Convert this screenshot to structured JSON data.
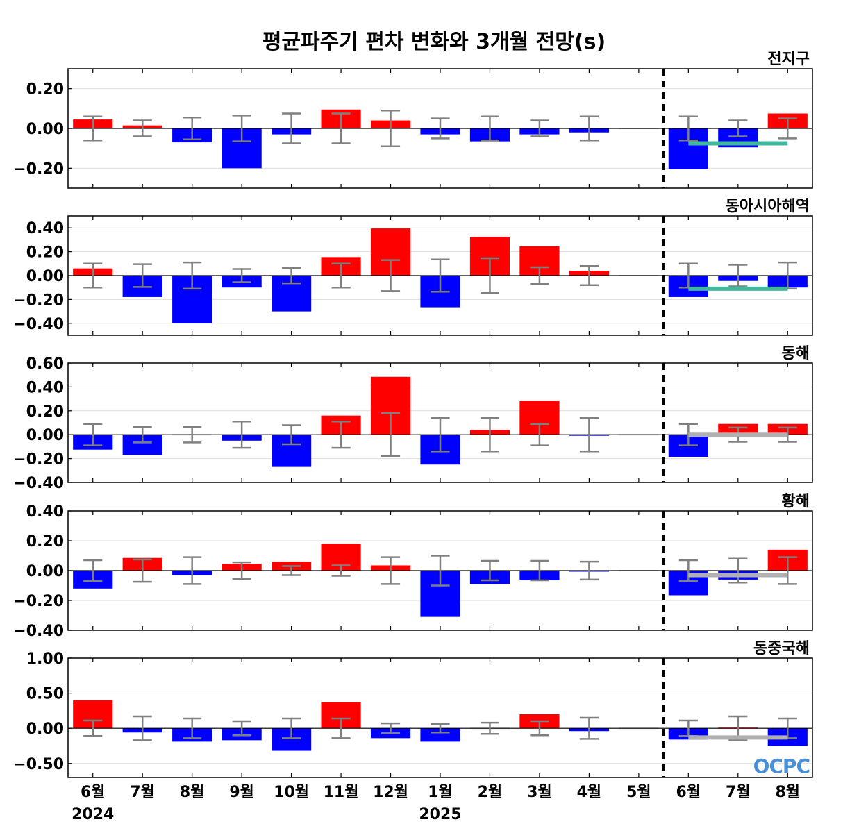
{
  "title": "평균파주기 편차 변화와 3개월 전망(s)",
  "logo_text": "OCPC",
  "colors": {
    "positive": "#ff0000",
    "negative": "#0000ff",
    "error_bar": "#808080",
    "forecast_teal": "#40b89c",
    "forecast_gray": "#b0b0b0",
    "grid": "#dddddd",
    "divider": "#000000"
  },
  "chart_data": {
    "type": "bar",
    "categories": [
      "6월",
      "7월",
      "8월",
      "9월",
      "10월",
      "11월",
      "12월",
      "1월",
      "2월",
      "3월",
      "4월",
      "5월",
      "6월",
      "7월",
      "8월"
    ],
    "year_labels": [
      {
        "label": "2024",
        "at_category": 0
      },
      {
        "label": "2025",
        "at_category": 7
      }
    ],
    "forecast_divider_between": [
      11,
      12
    ],
    "panels": [
      {
        "name": "전지구",
        "ylim": [
          -0.3,
          0.3
        ],
        "yticks": [
          0.2,
          0.0,
          -0.2
        ],
        "ytick_labels": [
          "0.20",
          "0.00",
          "−0.20"
        ],
        "values": [
          0.045,
          0.015,
          -0.07,
          -0.2,
          -0.03,
          0.095,
          0.04,
          -0.03,
          -0.065,
          -0.03,
          -0.02,
          0.0,
          -0.205,
          -0.095,
          0.075
        ],
        "error_bars": [
          0.06,
          0.04,
          0.055,
          0.065,
          0.075,
          0.075,
          0.09,
          0.05,
          0.06,
          0.04,
          0.06,
          null,
          0.06,
          0.04,
          0.05
        ],
        "forecast_line": {
          "value": -0.075,
          "from": 12,
          "to": 14,
          "color": "teal"
        }
      },
      {
        "name": "동아시아해역",
        "ylim": [
          -0.5,
          0.5
        ],
        "yticks": [
          0.4,
          0.2,
          0.0,
          -0.2,
          -0.4
        ],
        "ytick_labels": [
          "0.40",
          "0.20",
          "0.00",
          "−0.20",
          "−0.40"
        ],
        "values": [
          0.06,
          -0.18,
          -0.4,
          -0.1,
          -0.3,
          0.155,
          0.395,
          -0.265,
          0.325,
          0.245,
          0.04,
          0.0,
          -0.18,
          -0.045,
          -0.1
        ],
        "error_bars": [
          0.1,
          0.095,
          0.11,
          0.055,
          0.065,
          0.1,
          0.13,
          0.135,
          0.145,
          0.07,
          0.08,
          null,
          0.1,
          0.09,
          0.11
        ],
        "forecast_line": {
          "value": -0.11,
          "from": 12,
          "to": 14,
          "color": "teal"
        }
      },
      {
        "name": "동해",
        "ylim": [
          -0.4,
          0.6
        ],
        "yticks": [
          0.6,
          0.4,
          0.2,
          0.0,
          -0.2,
          -0.4
        ],
        "ytick_labels": [
          "0.60",
          "0.40",
          "0.20",
          "0.00",
          "−0.20",
          "−0.40"
        ],
        "values": [
          -0.125,
          -0.17,
          0.0,
          -0.05,
          -0.27,
          0.16,
          0.485,
          -0.25,
          0.04,
          0.285,
          -0.005,
          0.0,
          -0.185,
          0.09,
          0.09
        ],
        "error_bars": [
          0.09,
          0.065,
          0.065,
          0.11,
          0.08,
          0.11,
          0.18,
          0.14,
          0.14,
          0.09,
          0.14,
          null,
          0.09,
          0.06,
          0.06
        ],
        "forecast_line": {
          "value": 0.0,
          "from": 12,
          "to": 14,
          "color": "gray"
        }
      },
      {
        "name": "황해",
        "ylim": [
          -0.4,
          0.4
        ],
        "yticks": [
          0.4,
          0.2,
          0.0,
          -0.2,
          -0.4
        ],
        "ytick_labels": [
          "0.40",
          "0.20",
          "0.00",
          "−0.20",
          "−0.40"
        ],
        "values": [
          -0.12,
          0.085,
          -0.03,
          0.045,
          0.06,
          0.18,
          0.035,
          -0.31,
          -0.09,
          -0.065,
          -0.005,
          0.0,
          -0.165,
          -0.06,
          0.14
        ],
        "error_bars": [
          0.07,
          0.075,
          0.09,
          0.055,
          0.03,
          0.035,
          0.09,
          0.1,
          0.065,
          0.065,
          0.06,
          null,
          0.07,
          0.08,
          0.09
        ],
        "forecast_line": {
          "value": -0.03,
          "from": 12,
          "to": 14,
          "color": "gray"
        }
      },
      {
        "name": "동중국해",
        "ylim": [
          -0.7,
          1.0
        ],
        "yticks": [
          1.0,
          0.5,
          0.0,
          -0.5
        ],
        "ytick_labels": [
          "1.00",
          "0.50",
          "0.00",
          "−0.50"
        ],
        "values": [
          0.4,
          -0.06,
          -0.19,
          -0.17,
          -0.32,
          0.37,
          -0.14,
          -0.19,
          0.0,
          0.2,
          -0.04,
          0.0,
          -0.16,
          0.01,
          -0.25
        ],
        "error_bars": [
          0.11,
          0.17,
          0.14,
          0.1,
          0.14,
          0.14,
          0.07,
          0.06,
          0.08,
          0.1,
          0.15,
          null,
          0.11,
          0.17,
          0.14
        ],
        "forecast_line": {
          "value": -0.13,
          "from": 12,
          "to": 14,
          "color": "gray"
        }
      }
    ]
  }
}
